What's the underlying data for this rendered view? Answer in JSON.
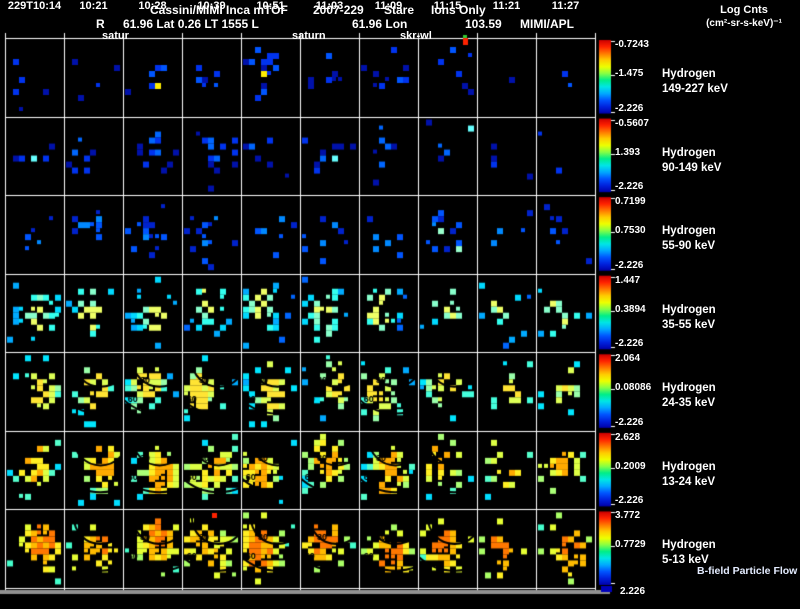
{
  "chart_data": {
    "type": "heatmap",
    "title": "Cassini/MIMI Inca mTOF 2007-229 Stare Ions Only",
    "title_parts": {
      "instrument": "Cassini/MIMI Inca mTOF",
      "date": "2007-229",
      "mode": "Stare",
      "species_filter": "Ions Only"
    },
    "colorbar_title": [
      "Log Cnts",
      "(cm²-sr-s-keV)⁻¹"
    ],
    "ephemeris": {
      "r_label": "R",
      "lat_block": "61.96 Lat 0.26 LT 1555 L",
      "lon_block": "61.96 Lon",
      "lon_value": "103.59",
      "credit": "MIMI/APL"
    },
    "axis_markers": {
      "left_body": "satur",
      "mid_body": "saturn",
      "right_body": "skr-wl"
    },
    "x_tick_labels": [
      "229T10:14",
      "10:21",
      "10:28",
      "10:39",
      "10:51",
      "11:03",
      "11:09",
      "11:15",
      "11:21",
      "11:27"
    ],
    "rows": [
      {
        "species": "Hydrogen",
        "energy": "149-227 keV",
        "scale": {
          "top": "-0.7243",
          "mid": "-1.475",
          "bottom": "-2.226"
        }
      },
      {
        "species": "Hydrogen",
        "energy": "90-149 keV",
        "scale": {
          "top": "-0.5607",
          "mid": "1.393",
          "bottom": "-2.226"
        }
      },
      {
        "species": "Hydrogen",
        "energy": "55-90 keV",
        "scale": {
          "top": "0.7199",
          "mid": "0.7530",
          "bottom": "-2.226"
        }
      },
      {
        "species": "Hydrogen",
        "energy": "35-55 keV",
        "scale": {
          "top": "1.447",
          "mid": "0.3894",
          "bottom": "-2.226"
        }
      },
      {
        "species": "Hydrogen",
        "energy": "24-35 keV",
        "scale": {
          "top": "2.064",
          "mid": "0.08086",
          "bottom": "-2.226"
        }
      },
      {
        "species": "Hydrogen",
        "energy": "13-24 keV",
        "scale": {
          "top": "2.628",
          "mid": "0.2009",
          "bottom": "-2.226"
        }
      },
      {
        "species": "Hydrogen",
        "energy": "5-13 keV",
        "scale": {
          "top": "3.772",
          "mid": "0.7729",
          "bottom": "2.226"
        }
      }
    ],
    "contour_labels": [
      "30",
      "60"
    ],
    "bfield_label": "B-field Particle Flow",
    "grid": {
      "columns": 10,
      "rows": 7
    },
    "legend_position": "right"
  },
  "style": {
    "background": "#000000",
    "grid_line_color": "#ffffff",
    "text_color": "#ffffff",
    "gray_bar_color": "#919191",
    "marker_red": "#ff2200",
    "marker_green": "#33cc33",
    "colorbar_stops": [
      "#cc0000",
      "#ff2200",
      "#ff7700",
      "#ffcc00",
      "#eeff00",
      "#88ff44",
      "#00ee88",
      "#00e6e6",
      "#00aaff",
      "#0055ff",
      "#0022dd",
      "#0000aa"
    ],
    "row_palettes": [
      [
        "#0011aa",
        "#0033ee",
        "#0055ff",
        "#0099ff",
        "#00d4ff",
        "#ffee00"
      ],
      [
        "#0011aa",
        "#0033ee",
        "#0066ff",
        "#00aaff",
        "#00e0ff",
        "#66ffff"
      ],
      [
        "#0022cc",
        "#0055ff",
        "#0088ff",
        "#00ccff",
        "#33ffff",
        "#99ffcc"
      ],
      [
        "#0066ff",
        "#00aaff",
        "#00d9ff",
        "#33ffee",
        "#88ffcc",
        "#eeff66"
      ],
      [
        "#00aaff",
        "#00e6ff",
        "#44ffdd",
        "#99ffaa",
        "#ddff55",
        "#ffe433"
      ],
      [
        "#00ddff",
        "#55ffcc",
        "#aaff77",
        "#ddff44",
        "#ffee22",
        "#ffaa00"
      ],
      [
        "#44ffcc",
        "#aaff66",
        "#e6ff33",
        "#ffee22",
        "#ffbb00",
        "#ff7700"
      ]
    ],
    "row_densities": [
      0.1,
      0.11,
      0.14,
      0.24,
      0.33,
      0.42,
      0.48
    ],
    "col_weights": [
      0.9,
      0.9,
      1.15,
      1.25,
      1.2,
      1.0,
      0.95,
      0.85,
      0.55,
      0.6
    ],
    "seed": 20070229
  }
}
